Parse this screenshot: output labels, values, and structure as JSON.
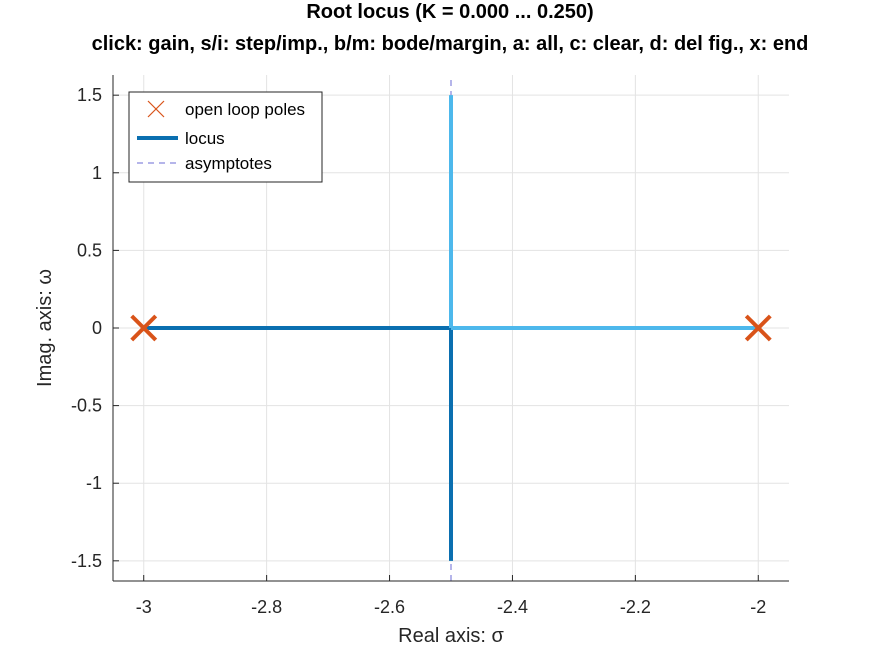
{
  "chart_data": {
    "type": "line",
    "title": "Root locus (K = 0.000 ... 0.250)",
    "subtitle": "click: gain, s/i: step/imp., b/m: bode/margin, a: all, c: clear, d: del fig., x: end",
    "xlabel": "Real axis: σ",
    "ylabel": "Imag. axis: ω",
    "xlim": [
      -3.05,
      -1.95
    ],
    "ylim": [
      -1.63,
      1.63
    ],
    "xticks": [
      -3,
      -2.8,
      -2.6,
      -2.4,
      -2.2,
      -2
    ],
    "xtick_labels": [
      "-3",
      "-2.8",
      "-2.6",
      "-2.4",
      "-2.2",
      "-2"
    ],
    "yticks": [
      -1.5,
      -1,
      -0.5,
      0,
      0.5,
      1,
      1.5
    ],
    "ytick_labels": [
      "-1.5",
      "-1",
      "-0.5",
      "0",
      "0.5",
      "1",
      "1.5"
    ],
    "grid": true,
    "legend_position": "top-left",
    "legend": [
      "open loop poles",
      "locus",
      "asymptotes"
    ],
    "open_loop_poles": {
      "x": [
        -3,
        -2
      ],
      "y": [
        0,
        0
      ],
      "color": "#d95319",
      "marker": "x"
    },
    "asymptote": {
      "x": [
        -2.5,
        -2.5
      ],
      "y": [
        -1.63,
        1.63
      ],
      "color": "#6b6bd6",
      "style": "dashed"
    },
    "series": [
      {
        "x": [
          -3,
          -2.5
        ],
        "y": [
          0,
          0
        ],
        "color": "#0a6fb0"
      },
      {
        "x": [
          -2.5,
          -2.5
        ],
        "y": [
          0,
          -1.5
        ],
        "color": "#0a6fb0"
      },
      {
        "x": [
          -2,
          -2.5
        ],
        "y": [
          0,
          0
        ],
        "color": "#4db8ec"
      },
      {
        "x": [
          -2.5,
          -2.5
        ],
        "y": [
          0,
          1.5
        ],
        "color": "#4db8ec"
      }
    ]
  }
}
